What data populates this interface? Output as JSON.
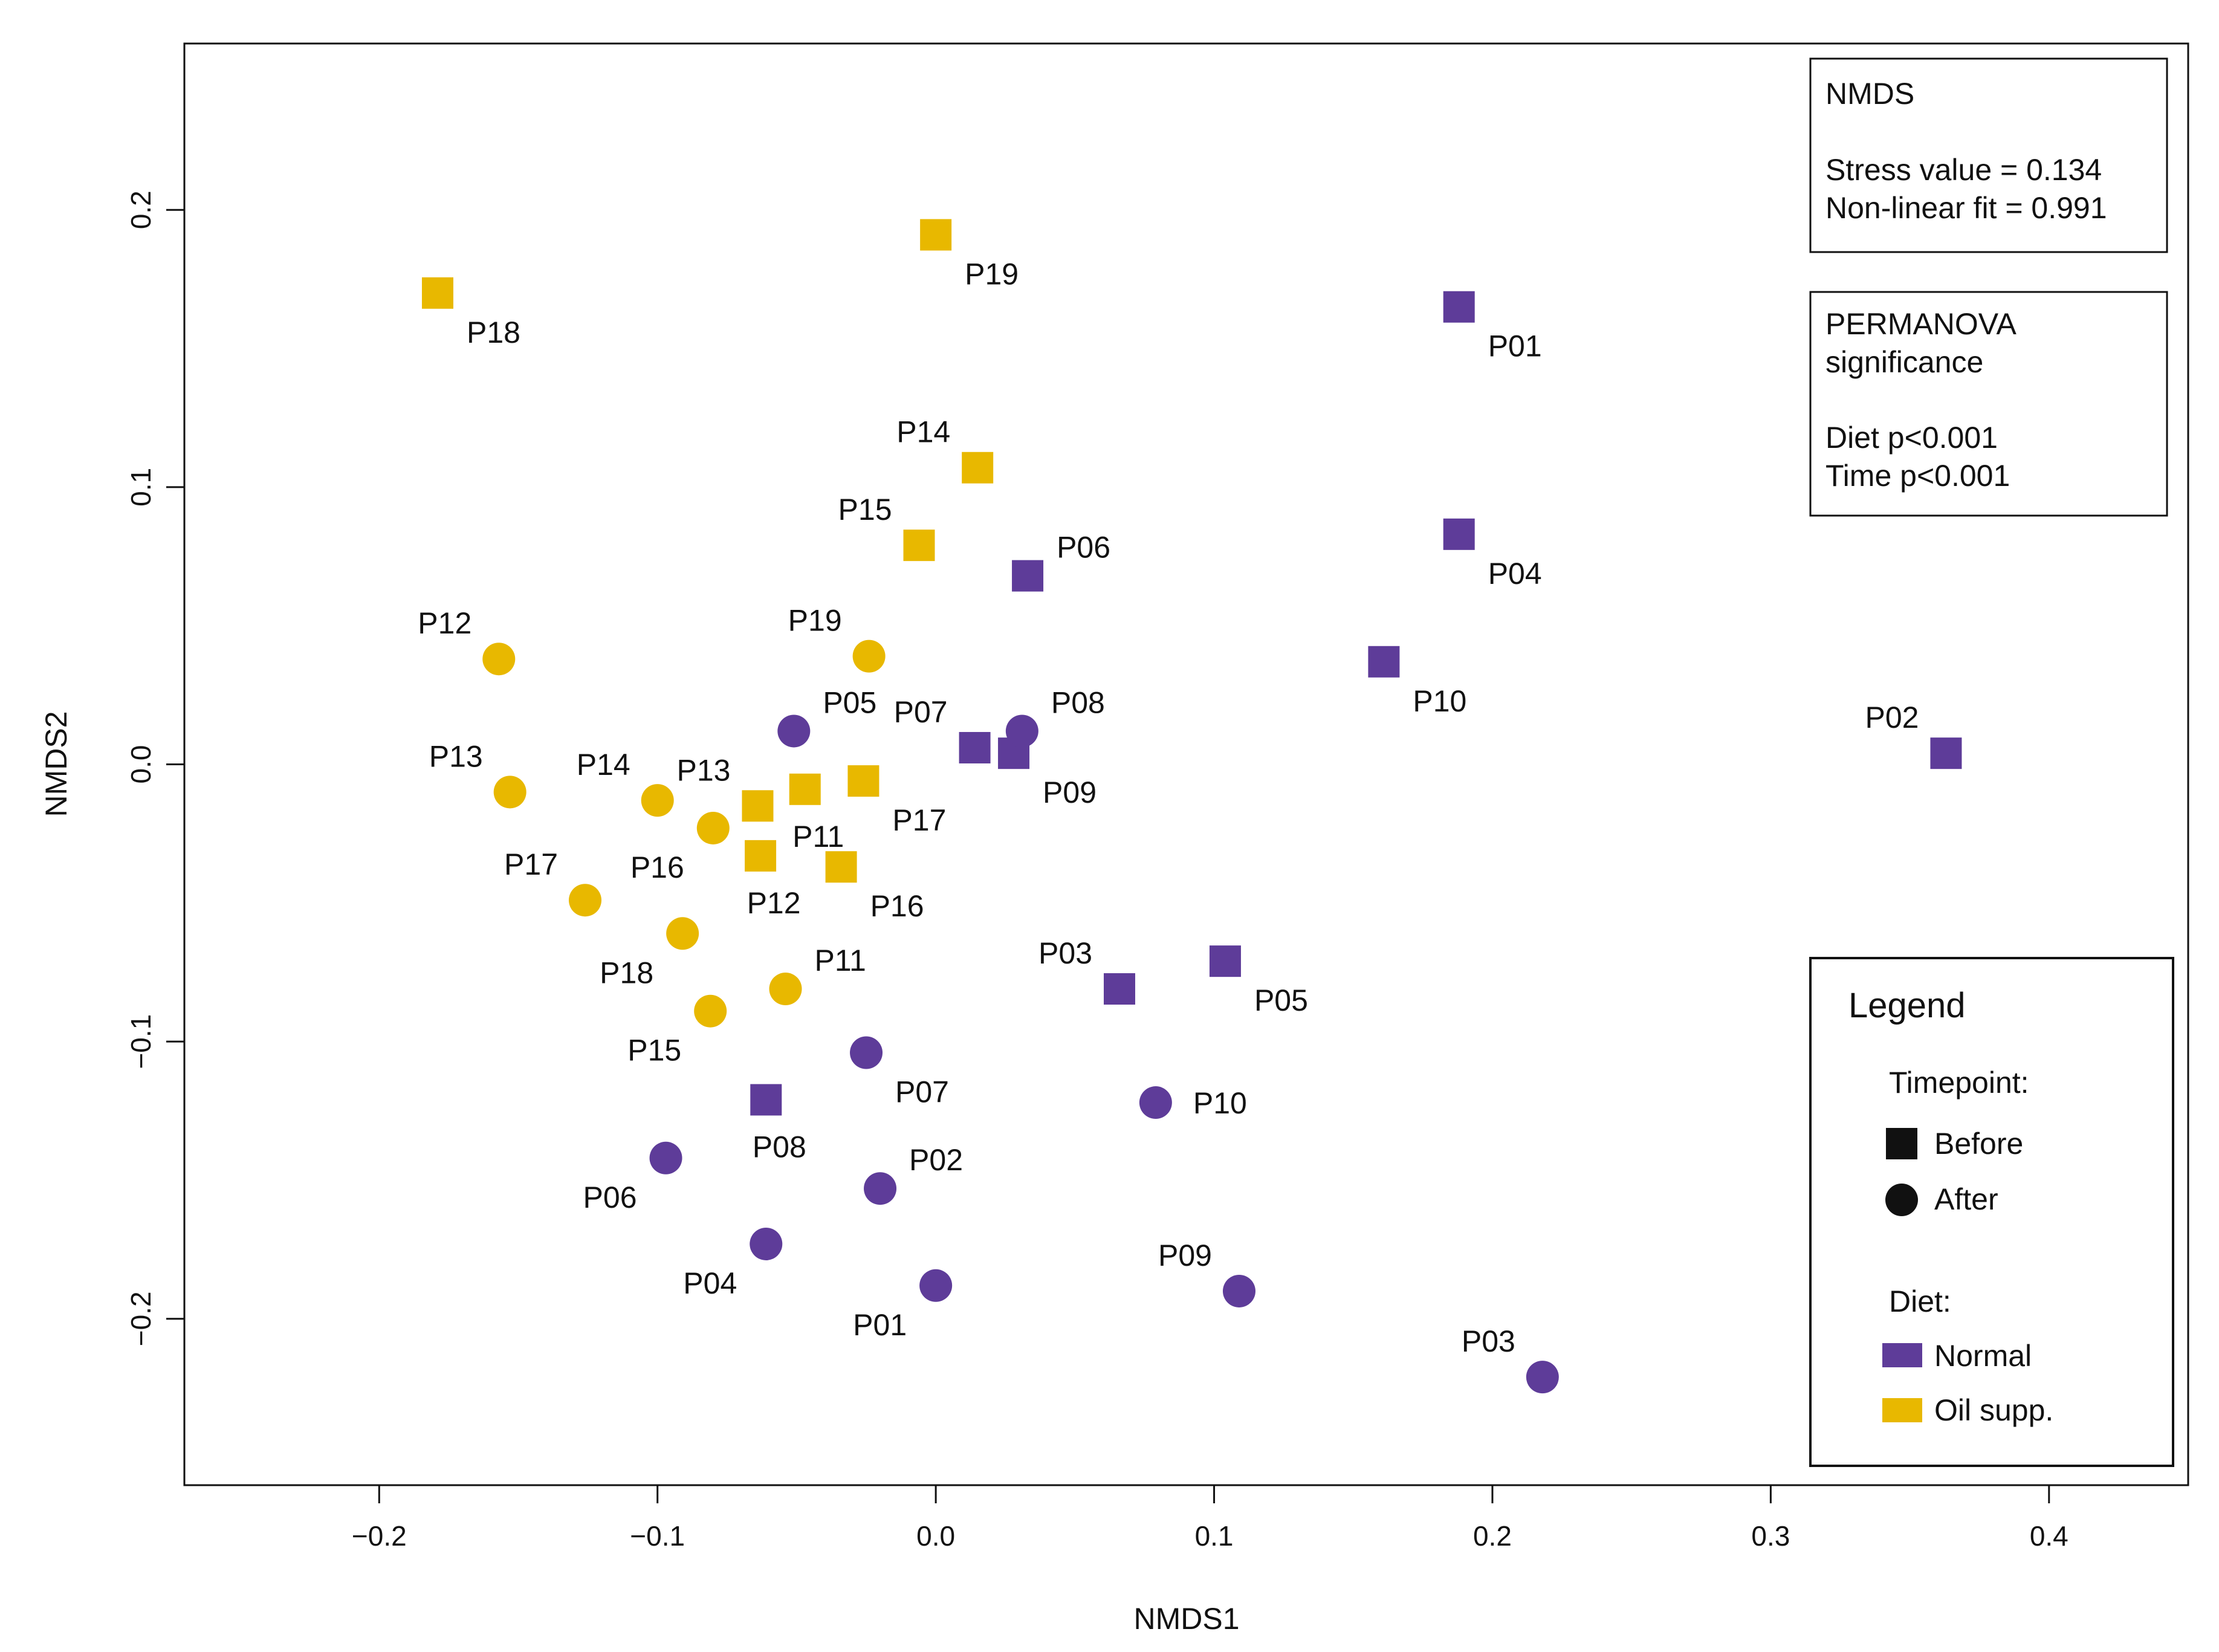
{
  "colors": {
    "normal": "#5e3c99",
    "oil": "#e8b800",
    "axis": "#111111",
    "background": "#ffffff"
  },
  "chart_data": {
    "type": "scatter",
    "xlabel": "NMDS1",
    "ylabel": "NMDS2",
    "xlim": [
      -0.27,
      0.45
    ],
    "ylim": [
      -0.26,
      0.26
    ],
    "xticks": [
      -0.2,
      -0.1,
      0.0,
      0.1,
      0.2,
      0.3,
      0.4
    ],
    "xtick_labels": [
      "−0.2",
      "−0.1",
      "0.0",
      "0.1",
      "0.2",
      "0.3",
      "0.4"
    ],
    "yticks": [
      -0.2,
      -0.1,
      0.0,
      0.1,
      0.2
    ],
    "ytick_labels": [
      "−0.2",
      "−0.1",
      "0.0",
      "0.1",
      "0.2"
    ],
    "grid": false,
    "series": [
      {
        "name": "Normal / Before",
        "diet": "Normal",
        "timepoint": "Before",
        "marker": "square",
        "points": [
          {
            "label": "P01",
            "x": 0.188,
            "y": 0.165,
            "pos": "below-right"
          },
          {
            "label": "P02",
            "x": 0.363,
            "y": 0.004,
            "pos": "above-left"
          },
          {
            "label": "P03",
            "x": 0.066,
            "y": -0.081,
            "pos": "above-left"
          },
          {
            "label": "P04",
            "x": 0.188,
            "y": 0.083,
            "pos": "below-right"
          },
          {
            "label": "P05",
            "x": 0.104,
            "y": -0.071,
            "pos": "below-right"
          },
          {
            "label": "P06",
            "x": 0.033,
            "y": 0.068,
            "pos": "above-right"
          },
          {
            "label": "P07",
            "x": 0.014,
            "y": 0.006,
            "pos": "above-left"
          },
          {
            "label": "P08",
            "x": -0.061,
            "y": -0.121,
            "pos": "below"
          },
          {
            "label": "P09",
            "x": 0.028,
            "y": 0.004,
            "pos": "below-right"
          },
          {
            "label": "P10",
            "x": 0.161,
            "y": 0.037,
            "pos": "below-right"
          }
        ]
      },
      {
        "name": "Oil supp. / Before",
        "diet": "Oil supp.",
        "timepoint": "Before",
        "marker": "square",
        "points": [
          {
            "label": "P11",
            "x": -0.047,
            "y": -0.009,
            "pos": "below"
          },
          {
            "label": "P12",
            "x": -0.063,
            "y": -0.033,
            "pos": "below"
          },
          {
            "label": "P13",
            "x": -0.064,
            "y": -0.015,
            "pos": "above-left"
          },
          {
            "label": "P14",
            "x": 0.015,
            "y": 0.107,
            "pos": "above-left"
          },
          {
            "label": "P15",
            "x": -0.006,
            "y": 0.079,
            "pos": "above-left"
          },
          {
            "label": "P16",
            "x": -0.034,
            "y": -0.037,
            "pos": "below-right"
          },
          {
            "label": "P17",
            "x": -0.026,
            "y": -0.006,
            "pos": "below-right"
          },
          {
            "label": "P18",
            "x": -0.179,
            "y": 0.17,
            "pos": "below-right"
          },
          {
            "label": "P19",
            "x": 0.0,
            "y": 0.191,
            "pos": "below-right"
          }
        ]
      },
      {
        "name": "Normal / After",
        "diet": "Normal",
        "timepoint": "After",
        "marker": "circle",
        "points": [
          {
            "label": "P01",
            "x": 0.0,
            "y": -0.188,
            "pos": "below-left"
          },
          {
            "label": "P02",
            "x": -0.02,
            "y": -0.153,
            "pos": "above-right"
          },
          {
            "label": "P03",
            "x": 0.218,
            "y": -0.221,
            "pos": "above-left"
          },
          {
            "label": "P04",
            "x": -0.061,
            "y": -0.173,
            "pos": "below-left"
          },
          {
            "label": "P05",
            "x": -0.051,
            "y": 0.012,
            "pos": "above-right"
          },
          {
            "label": "P06",
            "x": -0.097,
            "y": -0.142,
            "pos": "below-left"
          },
          {
            "label": "P07",
            "x": -0.025,
            "y": -0.104,
            "pos": "below-right"
          },
          {
            "label": "P08",
            "x": 0.031,
            "y": 0.012,
            "pos": "above-right"
          },
          {
            "label": "P09",
            "x": 0.109,
            "y": -0.19,
            "pos": "above-left"
          },
          {
            "label": "P10",
            "x": 0.079,
            "y": -0.122,
            "pos": "right"
          }
        ]
      },
      {
        "name": "Oil supp. / After",
        "diet": "Oil supp.",
        "timepoint": "After",
        "marker": "circle",
        "points": [
          {
            "label": "P11",
            "x": -0.054,
            "y": -0.081,
            "pos": "above-right"
          },
          {
            "label": "P12",
            "x": -0.157,
            "y": 0.038,
            "pos": "above-left"
          },
          {
            "label": "P13",
            "x": -0.153,
            "y": -0.01,
            "pos": "above-left"
          },
          {
            "label": "P14",
            "x": -0.1,
            "y": -0.013,
            "pos": "above-left"
          },
          {
            "label": "P15",
            "x": -0.081,
            "y": -0.089,
            "pos": "below-left"
          },
          {
            "label": "P16",
            "x": -0.08,
            "y": -0.023,
            "pos": "below-left"
          },
          {
            "label": "P17",
            "x": -0.126,
            "y": -0.049,
            "pos": "above-left"
          },
          {
            "label": "P18",
            "x": -0.091,
            "y": -0.061,
            "pos": "below-left"
          },
          {
            "label": "P19",
            "x": -0.024,
            "y": 0.039,
            "pos": "above-left"
          }
        ]
      }
    ]
  },
  "nmds_box": {
    "title": "NMDS",
    "stress": "Stress value = 0.134",
    "fit": "Non-linear fit = 0.991"
  },
  "permanova_box": {
    "title_line1": "PERMANOVA",
    "title_line2": "significance",
    "diet": "Diet p<0.001",
    "time": "Time p<0.001"
  },
  "legend": {
    "title": "Legend",
    "timepoint_heading": "Timepoint:",
    "before": "Before",
    "after": "After",
    "diet_heading": "Diet:",
    "normal": "Normal",
    "oil": "Oil supp."
  }
}
